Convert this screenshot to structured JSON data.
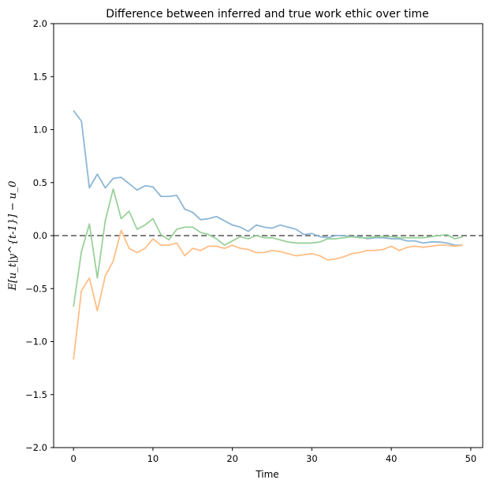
{
  "chart_data": {
    "type": "line",
    "title": "Difference between inferred and true work ethic over time",
    "xlabel": "Time",
    "ylabel": "E[u_t|y^{t-1}] − u_0",
    "xlim": [
      -2.5,
      51.5
    ],
    "ylim": [
      -2.0,
      2.0
    ],
    "xticks": [
      0,
      10,
      20,
      30,
      40,
      50
    ],
    "yticks": [
      -2.0,
      -1.5,
      -1.0,
      -0.5,
      0.0,
      0.5,
      1.0,
      1.5,
      2.0
    ],
    "xtick_labels": [
      "0",
      "10",
      "20",
      "30",
      "40",
      "50"
    ],
    "ytick_labels": [
      "−2.0",
      "−1.5",
      "−1.0",
      "−0.5",
      "0.0",
      "0.5",
      "1.0",
      "1.5",
      "2.0"
    ],
    "reference_line": {
      "y": 0.0,
      "style": "dashed",
      "color": "#6e6e6e"
    },
    "series": [
      {
        "name": "series-1",
        "color": "#8db7d6",
        "x": [
          0,
          1,
          2,
          3,
          4,
          5,
          6,
          7,
          8,
          9,
          10,
          11,
          12,
          13,
          14,
          15,
          16,
          17,
          18,
          19,
          20,
          21,
          22,
          23,
          24,
          25,
          26,
          27,
          28,
          29,
          30,
          31,
          32,
          33,
          34,
          35,
          36,
          37,
          38,
          39,
          40,
          41,
          42,
          43,
          44,
          45,
          46,
          47,
          48,
          49
        ],
        "values": [
          1.18,
          1.08,
          0.45,
          0.58,
          0.45,
          0.54,
          0.55,
          0.49,
          0.43,
          0.47,
          0.46,
          0.37,
          0.37,
          0.38,
          0.25,
          0.22,
          0.15,
          0.16,
          0.18,
          0.14,
          0.1,
          0.08,
          0.04,
          0.1,
          0.08,
          0.07,
          0.1,
          0.08,
          0.06,
          0.01,
          0.02,
          -0.01,
          -0.02,
          0.0,
          0.0,
          -0.01,
          -0.01,
          -0.03,
          -0.02,
          -0.02,
          -0.03,
          -0.03,
          -0.05,
          -0.05,
          -0.07,
          -0.06,
          -0.06,
          -0.07,
          -0.09,
          -0.09
        ]
      },
      {
        "name": "series-2",
        "color": "#ffbf86",
        "x": [
          0,
          1,
          2,
          3,
          4,
          5,
          6,
          7,
          8,
          9,
          10,
          11,
          12,
          13,
          14,
          15,
          16,
          17,
          18,
          19,
          20,
          21,
          22,
          23,
          24,
          25,
          26,
          27,
          28,
          29,
          30,
          31,
          32,
          33,
          34,
          35,
          36,
          37,
          38,
          39,
          40,
          41,
          42,
          43,
          44,
          45,
          46,
          47,
          48,
          49
        ],
        "values": [
          -1.17,
          -0.52,
          -0.4,
          -0.71,
          -0.38,
          -0.24,
          0.05,
          -0.12,
          -0.16,
          -0.12,
          -0.03,
          -0.09,
          -0.09,
          -0.07,
          -0.19,
          -0.12,
          -0.14,
          -0.1,
          -0.1,
          -0.12,
          -0.09,
          -0.12,
          -0.13,
          -0.16,
          -0.16,
          -0.14,
          -0.15,
          -0.17,
          -0.19,
          -0.18,
          -0.17,
          -0.19,
          -0.23,
          -0.22,
          -0.2,
          -0.17,
          -0.16,
          -0.14,
          -0.14,
          -0.13,
          -0.1,
          -0.14,
          -0.11,
          -0.1,
          -0.11,
          -0.1,
          -0.09,
          -0.09,
          -0.1,
          -0.09
        ]
      },
      {
        "name": "series-3",
        "color": "#99d199",
        "x": [
          0,
          1,
          2,
          3,
          4,
          5,
          6,
          7,
          8,
          9,
          10,
          11,
          12,
          13,
          14,
          15,
          16,
          17,
          18,
          19,
          20,
          21,
          22,
          23,
          24,
          25,
          26,
          27,
          28,
          29,
          30,
          31,
          32,
          33,
          34,
          35,
          36,
          37,
          38,
          39,
          40,
          41,
          42,
          43,
          44,
          45,
          46,
          47,
          48,
          49
        ],
        "values": [
          -0.67,
          -0.15,
          0.11,
          -0.4,
          0.14,
          0.44,
          0.16,
          0.23,
          0.06,
          0.1,
          0.16,
          0.01,
          -0.04,
          0.06,
          0.08,
          0.08,
          0.03,
          0.01,
          -0.03,
          -0.09,
          -0.05,
          -0.01,
          -0.03,
          0.0,
          -0.02,
          -0.02,
          -0.04,
          -0.06,
          -0.07,
          -0.07,
          -0.07,
          -0.06,
          -0.03,
          -0.03,
          -0.02,
          -0.01,
          -0.02,
          -0.02,
          -0.01,
          -0.01,
          -0.01,
          -0.02,
          -0.02,
          -0.02,
          -0.02,
          -0.01,
          0.0,
          0.01,
          -0.03,
          -0.01
        ]
      }
    ]
  }
}
